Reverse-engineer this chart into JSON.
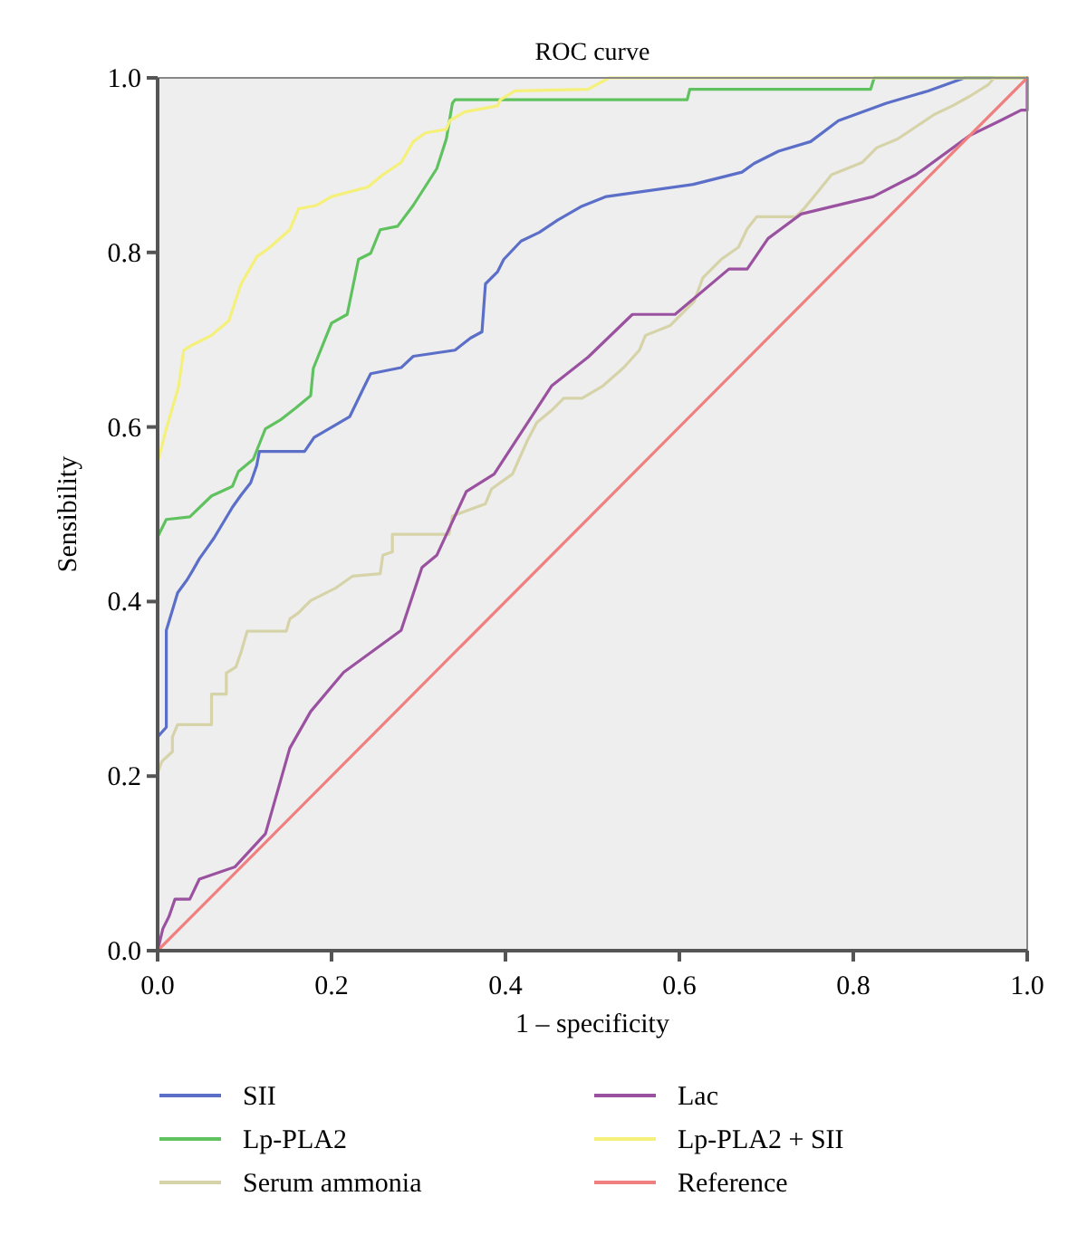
{
  "chart_data": {
    "type": "line",
    "title": "ROC curve",
    "xlabel": "1 – specificity",
    "ylabel": "Sensibility",
    "xlim": [
      0,
      1
    ],
    "ylim": [
      0,
      1
    ],
    "xticks": [
      {
        "value": 0,
        "label": "0.0"
      },
      0.2,
      0.4,
      0.6,
      0.8,
      {
        "value": 1,
        "label": "1.0"
      }
    ],
    "yticks": [
      {
        "value": 0,
        "label": "0.0"
      },
      0.2,
      0.4,
      0.6,
      0.8,
      {
        "value": 1,
        "label": "1.0"
      }
    ],
    "grid": false,
    "legend": "bottom",
    "marker": "none",
    "line_style": "solid",
    "series": [
      {
        "name": "SII",
        "color": "#5b6fc8",
        "x": [
          0,
          0,
          0.01,
          0.01,
          0.017,
          0.023,
          0.034,
          0.04,
          0.048,
          0.058,
          0.065,
          0.086,
          0.096,
          0.107,
          0.114,
          0.117,
          0.169,
          0.18,
          0.197,
          0.221,
          0.238,
          0.245,
          0.28,
          0.294,
          0.342,
          0.36,
          0.373,
          0.377,
          0.391,
          0.398,
          0.418,
          0.439,
          0.46,
          0.488,
          0.516,
          0.616,
          0.672,
          0.686,
          0.714,
          0.751,
          0.783,
          0.838,
          0.886,
          0.928,
          1
        ],
        "values": [
          0,
          0.245,
          0.256,
          0.367,
          0.39,
          0.41,
          0.425,
          0.435,
          0.449,
          0.463,
          0.473,
          0.508,
          0.522,
          0.536,
          0.556,
          0.572,
          0.572,
          0.588,
          0.598,
          0.612,
          0.647,
          0.661,
          0.668,
          0.681,
          0.688,
          0.702,
          0.709,
          0.764,
          0.778,
          0.792,
          0.813,
          0.823,
          0.837,
          0.853,
          0.864,
          0.878,
          0.892,
          0.902,
          0.916,
          0.927,
          0.951,
          0.971,
          0.985,
          1,
          1
        ]
      },
      {
        "name": "Lp-PLA2",
        "color": "#5fc25f",
        "x": [
          0,
          0,
          0.01,
          0.037,
          0.062,
          0.086,
          0.093,
          0.11,
          0.124,
          0.141,
          0.159,
          0.176,
          0.179,
          0.2,
          0.218,
          0.231,
          0.245,
          0.256,
          0.276,
          0.294,
          0.321,
          0.332,
          0.339,
          0.342,
          0.609,
          0.612,
          0.82,
          0.824,
          1
        ],
        "values": [
          0,
          0.474,
          0.494,
          0.497,
          0.521,
          0.532,
          0.549,
          0.563,
          0.598,
          0.608,
          0.622,
          0.636,
          0.667,
          0.719,
          0.729,
          0.792,
          0.799,
          0.826,
          0.83,
          0.854,
          0.896,
          0.93,
          0.971,
          0.975,
          0.975,
          0.987,
          0.987,
          1,
          1
        ]
      },
      {
        "name": "Serum ammonia",
        "color": "#d6d3a8",
        "x": [
          0,
          0,
          0.005,
          0.017,
          0.017,
          0.023,
          0.062,
          0.062,
          0.079,
          0.079,
          0.09,
          0.096,
          0.103,
          0.148,
          0.152,
          0.162,
          0.176,
          0.204,
          0.224,
          0.256,
          0.259,
          0.27,
          0.27,
          0.335,
          0.339,
          0.377,
          0.384,
          0.408,
          0.425,
          0.436,
          0.453,
          0.467,
          0.488,
          0.512,
          0.536,
          0.554,
          0.561,
          0.589,
          0.603,
          0.617,
          0.627,
          0.648,
          0.668,
          0.678,
          0.689,
          0.734,
          0.744,
          0.758,
          0.775,
          0.81,
          0.827,
          0.851,
          0.872,
          0.893,
          0.914,
          0.934,
          0.955,
          0.962,
          1
        ],
        "values": [
          0,
          0.204,
          0.217,
          0.228,
          0.245,
          0.259,
          0.259,
          0.294,
          0.294,
          0.318,
          0.325,
          0.342,
          0.366,
          0.366,
          0.38,
          0.387,
          0.401,
          0.415,
          0.429,
          0.432,
          0.453,
          0.457,
          0.477,
          0.477,
          0.498,
          0.512,
          0.529,
          0.546,
          0.584,
          0.605,
          0.619,
          0.633,
          0.633,
          0.647,
          0.668,
          0.688,
          0.705,
          0.716,
          0.73,
          0.744,
          0.771,
          0.792,
          0.806,
          0.827,
          0.841,
          0.841,
          0.851,
          0.868,
          0.889,
          0.903,
          0.92,
          0.93,
          0.944,
          0.958,
          0.968,
          0.979,
          0.992,
          1,
          1
        ]
      },
      {
        "name": "Lac",
        "color": "#9a52a0",
        "x": [
          0,
          0.006,
          0.013,
          0.02,
          0.037,
          0.048,
          0.089,
          0.124,
          0.152,
          0.176,
          0.214,
          0.28,
          0.304,
          0.321,
          0.355,
          0.387,
          0.453,
          0.495,
          0.546,
          0.595,
          0.657,
          0.678,
          0.702,
          0.74,
          0.823,
          0.872,
          0.934,
          0.969,
          0.993,
          1,
          1
        ],
        "values": [
          0,
          0.025,
          0.039,
          0.059,
          0.059,
          0.082,
          0.096,
          0.134,
          0.232,
          0.274,
          0.319,
          0.367,
          0.439,
          0.453,
          0.526,
          0.546,
          0.647,
          0.68,
          0.729,
          0.729,
          0.781,
          0.781,
          0.816,
          0.844,
          0.864,
          0.889,
          0.934,
          0.951,
          0.963,
          0.963,
          1
        ]
      },
      {
        "name": "Lp-PLA2 + SII",
        "color": "#f5f07a",
        "x": [
          0,
          0,
          0.01,
          0.024,
          0.03,
          0.04,
          0.062,
          0.082,
          0.096,
          0.114,
          0.128,
          0.152,
          0.162,
          0.183,
          0.2,
          0.242,
          0.259,
          0.28,
          0.294,
          0.308,
          0.332,
          0.336,
          0.353,
          0.391,
          0.394,
          0.411,
          0.495,
          0.519,
          1
        ],
        "values": [
          0,
          0.56,
          0.598,
          0.646,
          0.688,
          0.694,
          0.705,
          0.722,
          0.764,
          0.795,
          0.805,
          0.826,
          0.85,
          0.854,
          0.864,
          0.875,
          0.889,
          0.903,
          0.927,
          0.937,
          0.941,
          0.951,
          0.961,
          0.968,
          0.975,
          0.985,
          0.987,
          1,
          1
        ]
      },
      {
        "name": "Reference",
        "color": "#f08080",
        "x": [
          0,
          1
        ],
        "values": [
          0,
          1
        ]
      }
    ]
  }
}
